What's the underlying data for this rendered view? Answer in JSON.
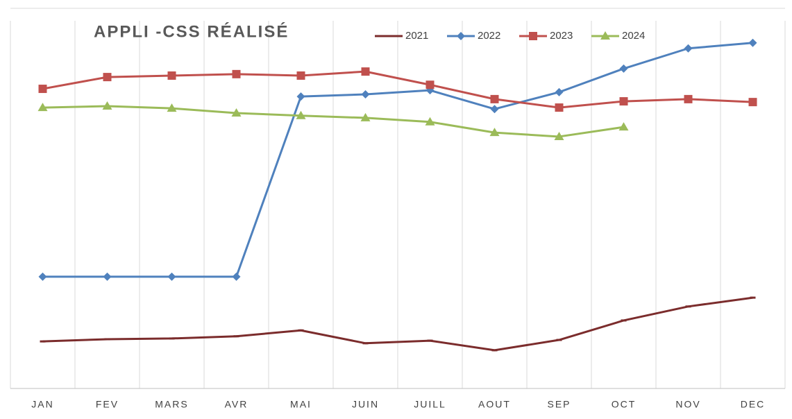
{
  "chart_data": {
    "type": "line",
    "title": "APPLI -CSS RÉALISÉ",
    "categories": [
      "JAN",
      "FEV",
      "MARS",
      "AVR",
      "MAI",
      "JUIN",
      "JUILL",
      "AOUT",
      "SEP",
      "OCT",
      "NOV",
      "DEC"
    ],
    "series": [
      {
        "name": "2021",
        "color": "#7b2c2c",
        "marker": "dash",
        "values": [
          12.8,
          13.4,
          13.6,
          14.2,
          15.8,
          12.3,
          13.0,
          10.4,
          13.2,
          18.5,
          22.3,
          24.7
        ]
      },
      {
        "name": "2022",
        "color": "#4f81bd",
        "marker": "diamond",
        "values": [
          30.4,
          30.4,
          30.4,
          30.4,
          79.4,
          80.0,
          81.1,
          76.0,
          80.6,
          87.0,
          92.5,
          94.0
        ]
      },
      {
        "name": "2023",
        "color": "#c0504d",
        "marker": "square",
        "values": [
          81.5,
          84.7,
          85.1,
          85.5,
          85.1,
          86.2,
          82.6,
          78.7,
          76.4,
          78.1,
          78.7,
          77.9
        ]
      },
      {
        "name": "2024",
        "color": "#9bbb59",
        "marker": "triangle",
        "values": [
          76.4,
          76.8,
          76.2,
          74.9,
          74.2,
          73.6,
          72.5,
          69.6,
          68.5,
          71.1,
          null,
          null
        ]
      }
    ],
    "ylim": [
      0,
      100
    ],
    "grid": "vertical",
    "legend": "top"
  }
}
